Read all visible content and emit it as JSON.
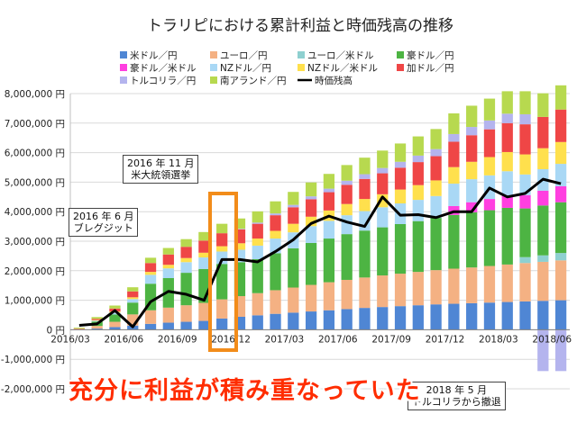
{
  "chart_data": {
    "type": "stacked-bar-with-line",
    "title": "トラリピにおける累計利益と時価残高の推移",
    "xlabel": "",
    "ylabel": "",
    "ylim": [
      -2000000,
      8000000
    ],
    "yticks": [
      -2000000,
      -1000000,
      0,
      1000000,
      2000000,
      3000000,
      4000000,
      5000000,
      6000000,
      7000000,
      8000000
    ],
    "ytick_labels": [
      "-2,000,000 円",
      "-1,000,000 円",
      "0 円",
      "1,000,000 円",
      "2,000,000 円",
      "3,000,000 円",
      "4,000,000 円",
      "5,000,000 円",
      "6,000,000 円",
      "7,000,000 円",
      "8,000,000 円"
    ],
    "x_tick_labels": [
      {
        "index": 0,
        "label": "2016/03"
      },
      {
        "index": 3,
        "label": "2016/06"
      },
      {
        "index": 6,
        "label": "2016/09"
      },
      {
        "index": 9,
        "label": "2016/12"
      },
      {
        "index": 12,
        "label": "2017/03"
      },
      {
        "index": 15,
        "label": "2017/06"
      },
      {
        "index": 18,
        "label": "2017/09"
      },
      {
        "index": 21,
        "label": "2017/12"
      },
      {
        "index": 24,
        "label": "2018/03"
      },
      {
        "index": 27,
        "label": "2018/06"
      }
    ],
    "categories": [
      "2016/03",
      "2016/04",
      "2016/05",
      "2016/06",
      "2016/07",
      "2016/08",
      "2016/09",
      "2016/10",
      "2016/11",
      "2016/12",
      "2017/01",
      "2017/02",
      "2017/03",
      "2017/04",
      "2017/05",
      "2017/06",
      "2017/07",
      "2017/08",
      "2017/09",
      "2017/10",
      "2017/11",
      "2017/12",
      "2018/01",
      "2018/02",
      "2018/03",
      "2018/04",
      "2018/05",
      "2018/06"
    ],
    "grid": true,
    "legend": [
      {
        "name": "米ドル／円",
        "color": "#4f86d4"
      },
      {
        "name": "ユーロ／円",
        "color": "#f4b183"
      },
      {
        "name": "ユーロ／米ドル",
        "color": "#8ed0d0"
      },
      {
        "name": "豪ドル／円",
        "color": "#4db443"
      },
      {
        "name": "豪ドル／米ドル",
        "color": "#ff3fe0"
      },
      {
        "name": "NZドル／円",
        "color": "#a9d8f5"
      },
      {
        "name": "NZドル／米ドル",
        "color": "#ffe04d"
      },
      {
        "name": "加ドル／円",
        "color": "#ef4646"
      },
      {
        "name": "トルコリラ／円",
        "color": "#b4b4ee"
      },
      {
        "name": "南アランド／円",
        "color": "#b7d94f"
      },
      {
        "name": "時価残高",
        "color": "#000000"
      }
    ],
    "series": [
      {
        "name": "米ドル／円",
        "values": [
          10000,
          40000,
          90000,
          140000,
          200000,
          240000,
          270000,
          300000,
          380000,
          440000,
          490000,
          540000,
          580000,
          620000,
          660000,
          700000,
          740000,
          770000,
          800000,
          830000,
          860000,
          880000,
          900000,
          920000,
          940000,
          960000,
          980000,
          1000000
        ]
      },
      {
        "name": "ユーロ／円",
        "values": [
          20000,
          90000,
          180000,
          380000,
          460000,
          510000,
          560000,
          610000,
          650000,
          700000,
          750000,
          800000,
          850000,
          900000,
          950000,
          990000,
          1030000,
          1070000,
          1100000,
          1130000,
          1160000,
          1190000,
          1210000,
          1240000,
          1270000,
          1300000,
          1320000,
          1350000
        ]
      },
      {
        "name": "ユーロ／米ドル",
        "values": [
          0,
          0,
          0,
          0,
          0,
          0,
          0,
          0,
          0,
          0,
          0,
          0,
          0,
          0,
          0,
          0,
          0,
          0,
          0,
          0,
          0,
          0,
          0,
          0,
          0,
          200000,
          220000,
          250000
        ]
      },
      {
        "name": "豪ドル／円",
        "values": [
          0,
          150000,
          250000,
          400000,
          900000,
          1000000,
          1100000,
          1150000,
          1200000,
          1150000,
          1150000,
          1250000,
          1330000,
          1420000,
          1480000,
          1550000,
          1590000,
          1630000,
          1680000,
          1720000,
          1770000,
          1820000,
          1870000,
          1890000,
          1920000,
          1650000,
          1690000,
          1720000
        ]
      },
      {
        "name": "豪ドル／米ドル",
        "values": [
          0,
          0,
          0,
          0,
          0,
          0,
          0,
          0,
          0,
          0,
          0,
          0,
          0,
          0,
          0,
          0,
          0,
          0,
          0,
          0,
          0,
          300000,
          340000,
          380000,
          420000,
          450000,
          500000,
          540000
        ]
      },
      {
        "name": "NZドル／円",
        "values": [
          0,
          30000,
          60000,
          120000,
          300000,
          330000,
          360000,
          390000,
          420000,
          420000,
          460000,
          500000,
          540000,
          570000,
          600000,
          640000,
          660000,
          680000,
          700000,
          720000,
          740000,
          760000,
          780000,
          800000,
          820000,
          700000,
          730000,
          760000
        ]
      },
      {
        "name": "NZドル／米ドル",
        "values": [
          0,
          20000,
          40000,
          60000,
          100000,
          120000,
          140000,
          160000,
          180000,
          220000,
          240000,
          260000,
          290000,
          320000,
          350000,
          380000,
          410000,
          440000,
          470000,
          500000,
          530000,
          560000,
          590000,
          620000,
          650000,
          680000,
          710000,
          740000
        ]
      },
      {
        "name": "加ドル／円",
        "values": [
          10000,
          40000,
          100000,
          200000,
          300000,
          350000,
          380000,
          410000,
          440000,
          470000,
          500000,
          530000,
          560000,
          590000,
          620000,
          650000,
          680000,
          710000,
          740000,
          780000,
          820000,
          860000,
          900000,
          940000,
          980000,
          1020000,
          1060000,
          1100000
        ]
      },
      {
        "name": "トルコリラ／円",
        "values": [
          0,
          0,
          0,
          0,
          0,
          0,
          0,
          0,
          0,
          20000,
          40000,
          60000,
          80000,
          100000,
          120000,
          140000,
          160000,
          180000,
          200000,
          220000,
          240000,
          260000,
          280000,
          300000,
          320000,
          340000,
          -1400000,
          -1400000
        ]
      },
      {
        "name": "南アランド／円",
        "values": [
          30000,
          60000,
          100000,
          140000,
          180000,
          220000,
          260000,
          290000,
          320000,
          350000,
          380000,
          410000,
          440000,
          470000,
          500000,
          530000,
          560000,
          590000,
          620000,
          650000,
          680000,
          700000,
          720000,
          740000,
          760000,
          780000,
          800000,
          820000
        ]
      }
    ],
    "line": {
      "name": "時価残高",
      "values": [
        150000,
        200000,
        650000,
        100000,
        950000,
        1300000,
        1200000,
        1000000,
        2380000,
        2380000,
        2300000,
        2650000,
        3050000,
        3600000,
        3850000,
        3650000,
        3500000,
        4500000,
        3880000,
        3900000,
        3800000,
        4000000,
        4000000,
        4800000,
        4500000,
        4620000,
        5100000,
        4950000
      ]
    }
  },
  "annotations": {
    "callout_2016_06": [
      "2016 年 6 月",
      "ブレグジット"
    ],
    "callout_2016_11": [
      "2016 年 11 月",
      "米大統領選挙"
    ],
    "callout_2018_05": [
      "2018 年 5 月",
      "トルコリラから撤退"
    ],
    "banner": "充分に利益が積み重なっていた"
  }
}
